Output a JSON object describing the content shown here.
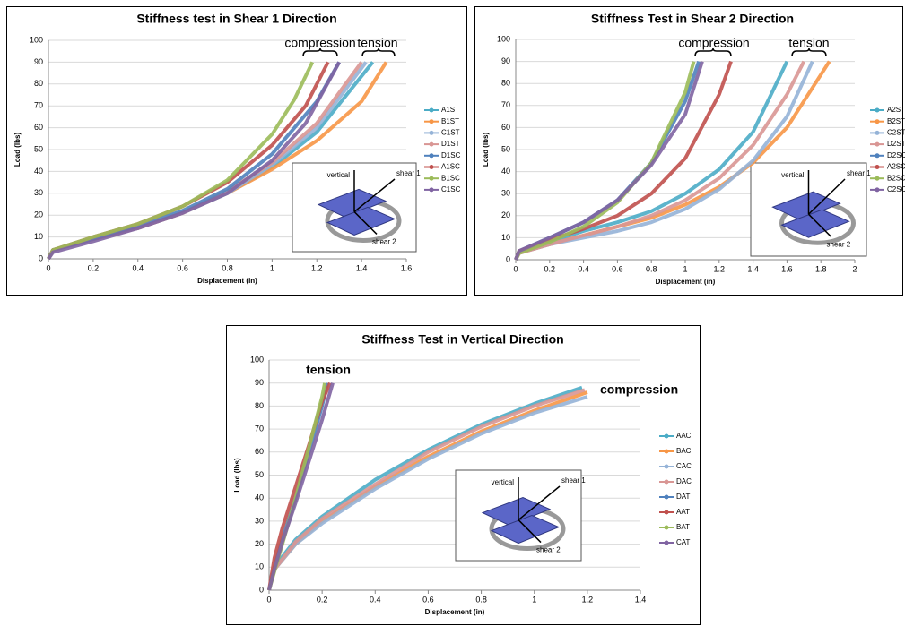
{
  "chart_data": [
    {
      "type": "line",
      "title": "Stiffness test in Shear 1 Direction",
      "x_label": "Displacement (in)",
      "y_label": "Load (lbs)",
      "xlim": [
        0,
        1.6
      ],
      "xticks": [
        0,
        0.2,
        0.4,
        0.6,
        0.8,
        1,
        1.2,
        1.4,
        1.6
      ],
      "ylim": [
        0,
        100
      ],
      "yticks": [
        0,
        10,
        20,
        30,
        40,
        50,
        60,
        70,
        80,
        90,
        100
      ],
      "grid": true,
      "annotations": [
        "compression",
        "tension"
      ],
      "diagram_labels": [
        "vertical",
        "shear 1",
        "shear 2"
      ],
      "series": [
        {
          "name": "A1ST",
          "color": "#4bacc6",
          "x": [
            0,
            0.02,
            0.2,
            0.4,
            0.6,
            0.8,
            1.0,
            1.2,
            1.45
          ],
          "values": [
            0,
            4,
            9,
            14,
            21,
            30,
            42,
            58,
            90
          ]
        },
        {
          "name": "B1ST",
          "color": "#f79646",
          "x": [
            0,
            0.02,
            0.2,
            0.4,
            0.6,
            0.8,
            1.0,
            1.2,
            1.4,
            1.51
          ],
          "values": [
            0,
            4,
            9,
            14,
            21,
            30,
            41,
            54,
            72,
            90
          ]
        },
        {
          "name": "C1ST",
          "color": "#95b3d7",
          "x": [
            0,
            0.02,
            0.2,
            0.4,
            0.6,
            0.8,
            1.0,
            1.2,
            1.42
          ],
          "values": [
            0,
            4,
            9,
            14,
            21,
            30,
            43,
            60,
            90
          ]
        },
        {
          "name": "D1ST",
          "color": "#d99694",
          "x": [
            0,
            0.02,
            0.2,
            0.4,
            0.6,
            0.8,
            1.0,
            1.2,
            1.4
          ],
          "values": [
            0,
            4,
            9,
            14,
            21,
            31,
            44,
            62,
            90
          ]
        },
        {
          "name": "D1SC",
          "color": "#4f81bd",
          "x": [
            0,
            0.02,
            0.2,
            0.4,
            0.6,
            0.8,
            1.0,
            1.2,
            1.3
          ],
          "values": [
            0,
            4,
            9,
            15,
            22,
            32,
            48,
            72,
            90
          ]
        },
        {
          "name": "A1SC",
          "color": "#c0504d",
          "x": [
            0,
            0.02,
            0.2,
            0.4,
            0.6,
            0.8,
            1.0,
            1.15,
            1.25
          ],
          "values": [
            0,
            4,
            10,
            16,
            24,
            35,
            52,
            70,
            90
          ]
        },
        {
          "name": "B1SC",
          "color": "#9bbb59",
          "x": [
            0,
            0.02,
            0.2,
            0.4,
            0.6,
            0.8,
            1.0,
            1.1,
            1.18
          ],
          "values": [
            0,
            4,
            10,
            16,
            24,
            36,
            57,
            73,
            90
          ]
        },
        {
          "name": "C1SC",
          "color": "#8064a2",
          "x": [
            0,
            0.02,
            0.2,
            0.4,
            0.6,
            0.8,
            1.0,
            1.15,
            1.3
          ],
          "values": [
            0,
            3,
            8,
            14,
            21,
            30,
            45,
            62,
            90
          ]
        }
      ]
    },
    {
      "type": "line",
      "title": "Stiffness Test in Shear 2 Direction",
      "x_label": "Displacement (in)",
      "y_label": "Load (lbs)",
      "xlim": [
        0,
        2
      ],
      "xticks": [
        0,
        0.2,
        0.4,
        0.6,
        0.8,
        1,
        1.2,
        1.4,
        1.6,
        1.8,
        2
      ],
      "ylim": [
        0,
        100
      ],
      "yticks": [
        0,
        10,
        20,
        30,
        40,
        50,
        60,
        70,
        80,
        90,
        100
      ],
      "grid": true,
      "annotations": [
        "compression",
        "tension"
      ],
      "diagram_labels": [
        "vertical",
        "shear 1",
        "shear 2"
      ],
      "series": [
        {
          "name": "A2ST",
          "color": "#4bacc6",
          "x": [
            0,
            0.02,
            0.2,
            0.4,
            0.6,
            0.8,
            1.0,
            1.2,
            1.4,
            1.6
          ],
          "values": [
            0,
            3,
            8,
            13,
            17,
            22,
            30,
            41,
            58,
            90
          ]
        },
        {
          "name": "B2ST",
          "color": "#f79646",
          "x": [
            0,
            0.02,
            0.2,
            0.4,
            0.6,
            0.8,
            1.0,
            1.2,
            1.4,
            1.6,
            1.85
          ],
          "values": [
            0,
            3,
            7,
            11,
            15,
            19,
            25,
            33,
            44,
            60,
            90
          ]
        },
        {
          "name": "C2ST",
          "color": "#95b3d7",
          "x": [
            0,
            0.02,
            0.2,
            0.4,
            0.6,
            0.8,
            1.0,
            1.2,
            1.4,
            1.6,
            1.75
          ],
          "values": [
            0,
            3,
            7,
            10,
            13,
            17,
            23,
            32,
            45,
            65,
            90
          ]
        },
        {
          "name": "D2ST",
          "color": "#d99694",
          "x": [
            0,
            0.02,
            0.2,
            0.4,
            0.6,
            0.8,
            1.0,
            1.2,
            1.4,
            1.6,
            1.7
          ],
          "values": [
            0,
            3,
            7,
            11,
            15,
            20,
            27,
            37,
            52,
            75,
            90
          ]
        },
        {
          "name": "D2SC",
          "color": "#4f81bd",
          "x": [
            0,
            0.02,
            0.2,
            0.4,
            0.6,
            0.8,
            1.0,
            1.08
          ],
          "values": [
            0,
            4,
            10,
            17,
            27,
            44,
            72,
            90
          ]
        },
        {
          "name": "A2SC",
          "color": "#c0504d",
          "x": [
            0,
            0.02,
            0.2,
            0.4,
            0.6,
            0.8,
            1.0,
            1.2,
            1.27
          ],
          "values": [
            0,
            4,
            9,
            14,
            20,
            30,
            46,
            75,
            90
          ]
        },
        {
          "name": "B2SC",
          "color": "#9bbb59",
          "x": [
            0,
            0.02,
            0.2,
            0.4,
            0.6,
            0.8,
            1.0,
            1.05
          ],
          "values": [
            0,
            3,
            8,
            15,
            26,
            44,
            76,
            90
          ]
        },
        {
          "name": "C2SC",
          "color": "#8064a2",
          "x": [
            0,
            0.02,
            0.2,
            0.4,
            0.6,
            0.8,
            1.0,
            1.1
          ],
          "values": [
            0,
            4,
            10,
            17,
            27,
            43,
            66,
            90
          ]
        }
      ]
    },
    {
      "type": "line",
      "title": "Stiffness Test in Vertical Direction",
      "x_label": "Displacement (in)",
      "y_label": "Load (lbs)",
      "xlim": [
        0,
        1.4
      ],
      "xticks": [
        0,
        0.2,
        0.4,
        0.6,
        0.8,
        1,
        1.2,
        1.4
      ],
      "ylim": [
        0,
        100
      ],
      "yticks": [
        0,
        10,
        20,
        30,
        40,
        50,
        60,
        70,
        80,
        90,
        100
      ],
      "grid": true,
      "annotations": [
        "tension",
        "compression"
      ],
      "diagram_labels": [
        "vertical",
        "shear 1",
        "shear 2"
      ],
      "series": [
        {
          "name": "AAC",
          "color": "#4bacc6",
          "x": [
            0,
            0.02,
            0.1,
            0.2,
            0.4,
            0.6,
            0.8,
            1.0,
            1.18
          ],
          "values": [
            0,
            10,
            22,
            32,
            48,
            61,
            72,
            81,
            88
          ]
        },
        {
          "name": "BAC",
          "color": "#f79646",
          "x": [
            0,
            0.02,
            0.1,
            0.2,
            0.4,
            0.6,
            0.8,
            1.0,
            1.2
          ],
          "values": [
            0,
            9,
            20,
            30,
            45,
            58,
            69,
            78,
            86
          ]
        },
        {
          "name": "CAC",
          "color": "#95b3d7",
          "x": [
            0,
            0.02,
            0.1,
            0.2,
            0.4,
            0.6,
            0.8,
            1.0,
            1.2
          ],
          "values": [
            0,
            9,
            20,
            29,
            44,
            57,
            68,
            77,
            84
          ]
        },
        {
          "name": "DAC",
          "color": "#d99694",
          "x": [
            0,
            0.02,
            0.1,
            0.2,
            0.4,
            0.6,
            0.8,
            1.0,
            1.19
          ],
          "values": [
            0,
            9,
            21,
            31,
            46,
            60,
            71,
            80,
            87
          ]
        },
        {
          "name": "DAT",
          "color": "#4f81bd",
          "x": [
            0,
            0.02,
            0.05,
            0.1,
            0.15,
            0.2,
            0.22
          ],
          "values": [
            0,
            10,
            22,
            40,
            60,
            80,
            90
          ]
        },
        {
          "name": "AAT",
          "color": "#c0504d",
          "x": [
            0,
            0.02,
            0.05,
            0.1,
            0.15,
            0.2,
            0.23
          ],
          "values": [
            0,
            14,
            27,
            45,
            63,
            82,
            90
          ]
        },
        {
          "name": "BAT",
          "color": "#9bbb59",
          "x": [
            0,
            0.02,
            0.05,
            0.1,
            0.15,
            0.2,
            0.21
          ],
          "values": [
            0,
            8,
            20,
            40,
            62,
            84,
            90
          ]
        },
        {
          "name": "CAT",
          "color": "#8064a2",
          "x": [
            0,
            0.02,
            0.05,
            0.1,
            0.15,
            0.2,
            0.24
          ],
          "values": [
            0,
            9,
            21,
            38,
            56,
            74,
            90
          ]
        }
      ]
    }
  ]
}
